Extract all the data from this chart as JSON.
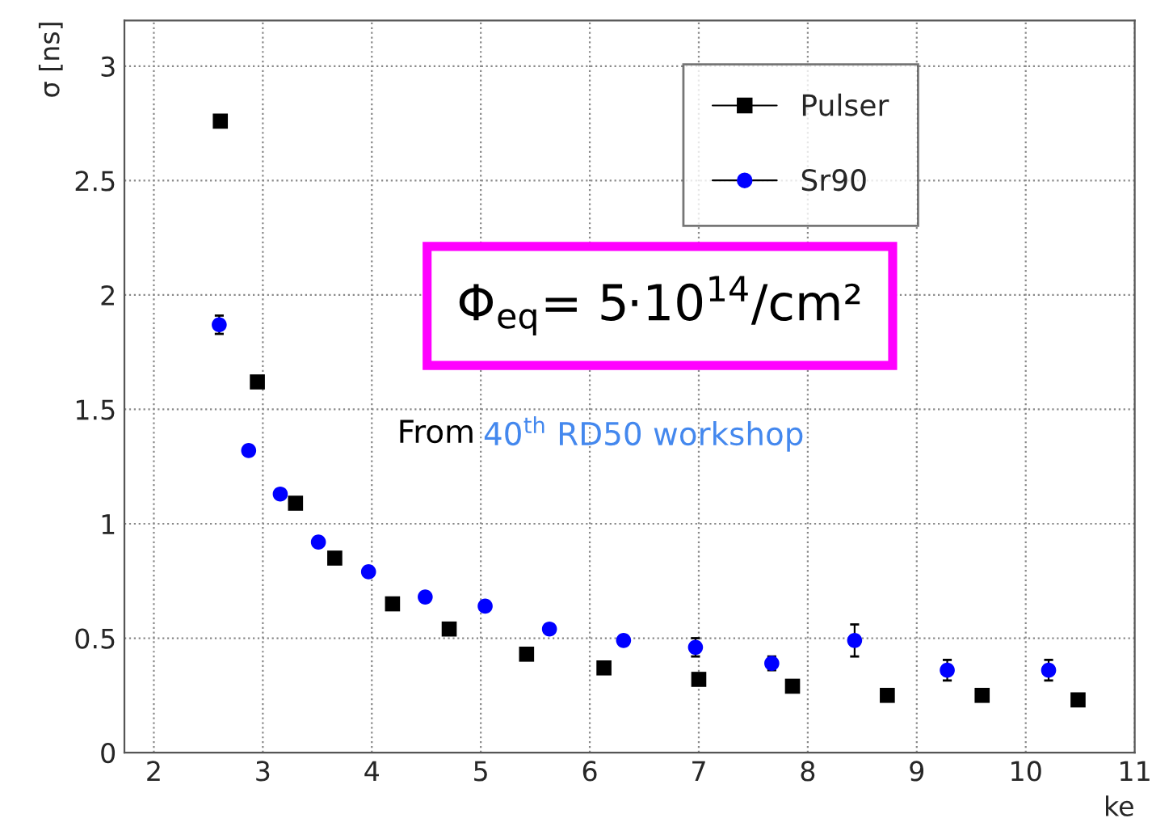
{
  "chart_data": {
    "type": "scatter",
    "xlabel": "ke",
    "ylabel": "σ [ns]",
    "xlim": [
      1.73,
      11
    ],
    "xticks": [
      2,
      3,
      4,
      5,
      6,
      7,
      8,
      9,
      10,
      11
    ],
    "ylim": [
      0,
      3.2
    ],
    "yticks": [
      0,
      0.5,
      1,
      1.5,
      2,
      2.5,
      3
    ],
    "grid": true,
    "legend": "top right",
    "series": [
      {
        "name": "Pulser",
        "color": "#000000",
        "marker": "square",
        "x": [
          2.61,
          2.95,
          3.3,
          3.66,
          4.19,
          4.71,
          5.42,
          6.13,
          7.0,
          7.86,
          8.73,
          9.6,
          10.48
        ],
        "values": [
          2.76,
          1.62,
          1.09,
          0.85,
          0.65,
          0.54,
          0.43,
          0.37,
          0.32,
          0.29,
          0.25,
          0.25,
          0.23
        ]
      },
      {
        "name": "Sr90",
        "color": "#0000ff",
        "marker": "circle",
        "x": [
          2.6,
          2.87,
          3.16,
          3.51,
          3.97,
          4.49,
          5.04,
          5.63,
          6.31,
          6.97,
          7.67,
          8.43,
          9.28,
          10.21
        ],
        "values": [
          1.87,
          1.32,
          1.13,
          0.92,
          0.79,
          0.68,
          0.64,
          0.54,
          0.49,
          0.46,
          0.39,
          0.49,
          0.36,
          0.36
        ],
        "errors": [
          0.04,
          null,
          null,
          null,
          null,
          null,
          null,
          null,
          null,
          0.04,
          0.03,
          0.07,
          0.045,
          0.045
        ]
      }
    ],
    "annotations": [
      "Φ$_{eq}$= 5·10$^{14}$/cm²",
      "From",
      "40$^{th}$ RD50 workshop"
    ]
  }
}
